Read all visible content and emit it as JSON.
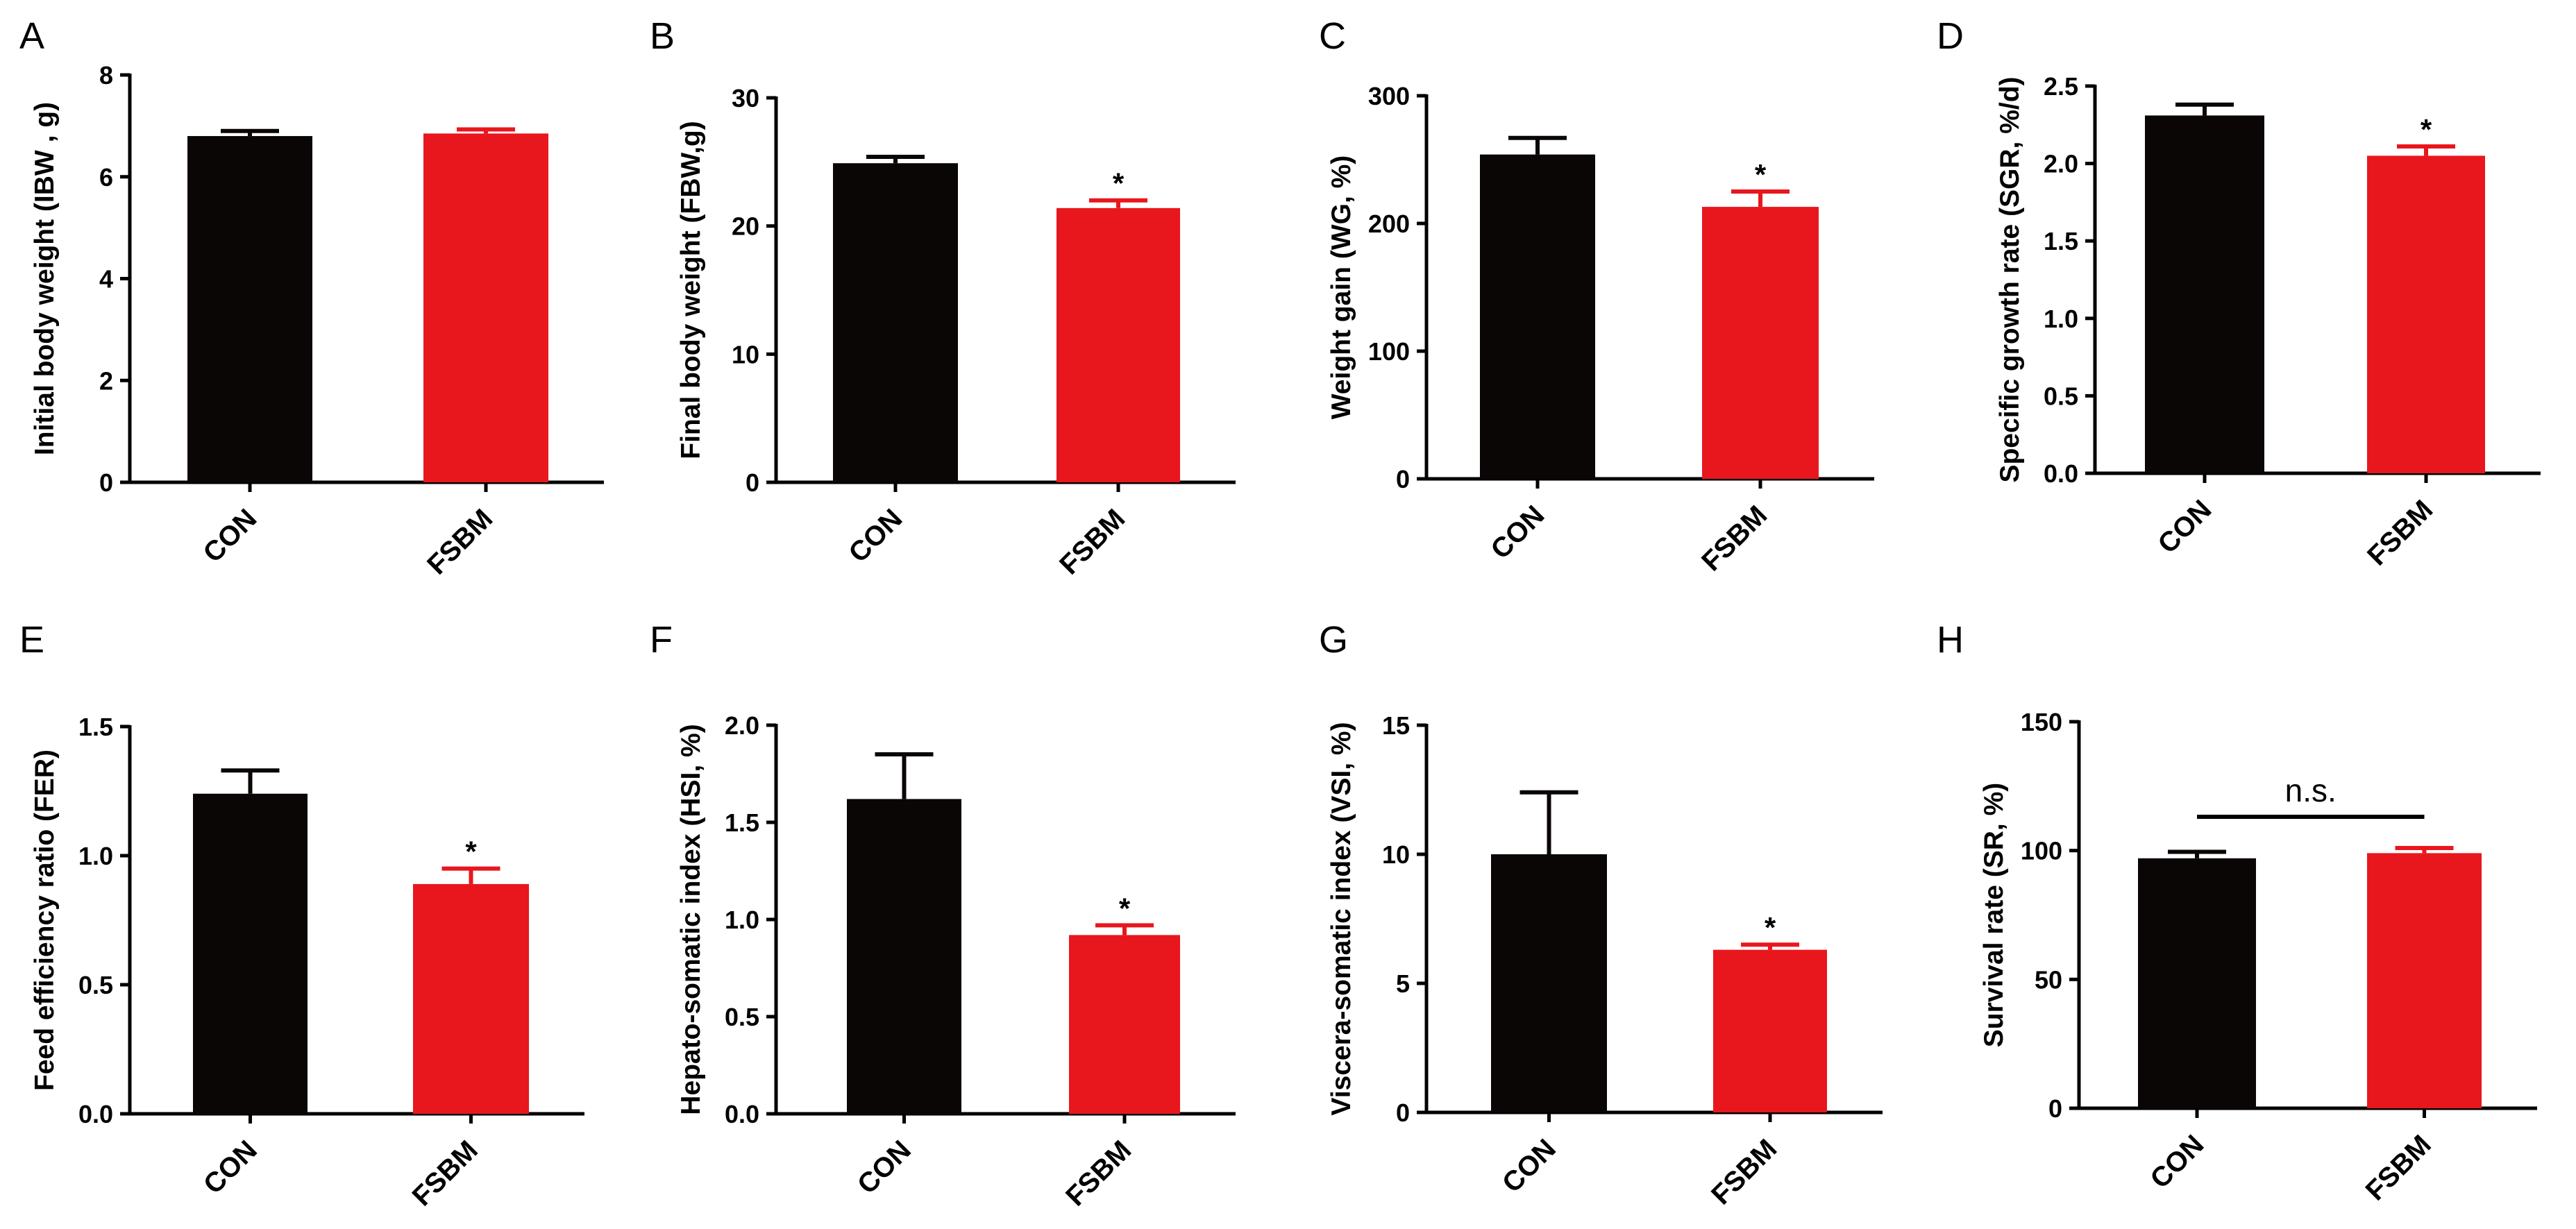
{
  "chart_data": [
    {
      "type": "bar",
      "panel": "A",
      "categories": [
        "CON",
        "FSBM"
      ],
      "ylabel": "Initial body weight (IBW , g)",
      "ylim": [
        0,
        8
      ],
      "ticks": [
        0,
        2,
        4,
        6,
        8
      ],
      "tick_labels": [
        "0",
        "2",
        "4",
        "6",
        "8"
      ],
      "values": [
        6.8,
        6.85
      ],
      "errors": [
        0.1,
        0.08
      ],
      "significance": [
        "",
        ""
      ],
      "bracket_label": ""
    },
    {
      "type": "bar",
      "panel": "B",
      "categories": [
        "CON",
        "FSBM"
      ],
      "ylabel": "Final body weight (FBW,g)",
      "ylim": [
        0,
        30
      ],
      "ticks": [
        0,
        10,
        20,
        30
      ],
      "tick_labels": [
        "0",
        "10",
        "20",
        "30"
      ],
      "values": [
        24.9,
        21.4
      ],
      "errors": [
        0.5,
        0.6
      ],
      "significance": [
        "",
        "*"
      ],
      "bracket_label": ""
    },
    {
      "type": "bar",
      "panel": "C",
      "categories": [
        "CON",
        "FSBM"
      ],
      "ylabel": "Weight gain (WG, %)",
      "ylim": [
        0,
        300
      ],
      "ticks": [
        0,
        100,
        200,
        300
      ],
      "tick_labels": [
        "0",
        "100",
        "200",
        "300"
      ],
      "values": [
        254,
        213
      ],
      "errors": [
        13,
        12
      ],
      "significance": [
        "",
        "*"
      ],
      "bracket_label": ""
    },
    {
      "type": "bar",
      "panel": "D",
      "categories": [
        "CON",
        "FSBM"
      ],
      "ylabel": "Specific growth rate (SGR, %/d)",
      "ylim": [
        0,
        2.5
      ],
      "ticks": [
        0,
        0.5,
        1,
        1.5,
        2,
        2.5
      ],
      "tick_labels": [
        "0.0",
        "0.5",
        "1.0",
        "1.5",
        "2.0",
        "2.5"
      ],
      "values": [
        2.31,
        2.05
      ],
      "errors": [
        0.07,
        0.06
      ],
      "significance": [
        "",
        "*"
      ],
      "bracket_label": ""
    },
    {
      "type": "bar",
      "panel": "E",
      "categories": [
        "CON",
        "FSBM"
      ],
      "ylabel": "Feed efficiency ratio (FER)",
      "ylim": [
        0,
        1.5
      ],
      "ticks": [
        0,
        0.5,
        1,
        1.5
      ],
      "tick_labels": [
        "0.0",
        "0.5",
        "1.0",
        "1.5"
      ],
      "values": [
        1.24,
        0.89
      ],
      "errors": [
        0.09,
        0.06
      ],
      "significance": [
        "",
        "*"
      ],
      "bracket_label": ""
    },
    {
      "type": "bar",
      "panel": "F",
      "categories": [
        "CON",
        "FSBM"
      ],
      "ylabel": "Hepato-somatic index (HSI, %)",
      "ylim": [
        0,
        2.0
      ],
      "ticks": [
        0,
        0.5,
        1,
        1.5,
        2
      ],
      "tick_labels": [
        "0.0",
        "0.5",
        "1.0",
        "1.5",
        "2.0"
      ],
      "values": [
        1.62,
        0.92
      ],
      "errors": [
        0.23,
        0.05
      ],
      "significance": [
        "",
        "*"
      ],
      "bracket_label": ""
    },
    {
      "type": "bar",
      "panel": "G",
      "categories": [
        "CON",
        "FSBM"
      ],
      "ylabel": "Viscera-somatic index (VSI, %)",
      "ylim": [
        0,
        15
      ],
      "ticks": [
        0,
        5,
        10,
        15
      ],
      "tick_labels": [
        "0",
        "5",
        "10",
        "15"
      ],
      "values": [
        10.0,
        6.3
      ],
      "errors": [
        2.4,
        0.2
      ],
      "significance": [
        "",
        "*"
      ],
      "bracket_label": ""
    },
    {
      "type": "bar",
      "panel": "H",
      "categories": [
        "CON",
        "FSBM"
      ],
      "ylabel": "Survival rate (SR, %)",
      "ylim": [
        0,
        150
      ],
      "ticks": [
        0,
        50,
        100,
        150
      ],
      "tick_labels": [
        "0",
        "50",
        "100",
        "150"
      ],
      "values": [
        97,
        99
      ],
      "errors": [
        2.5,
        2
      ],
      "significance": [
        "",
        ""
      ],
      "bracket_label": "n.s."
    }
  ],
  "colors": {
    "CON": "#0a0606",
    "FSBM": "#e8171d",
    "axis": "#000000"
  }
}
